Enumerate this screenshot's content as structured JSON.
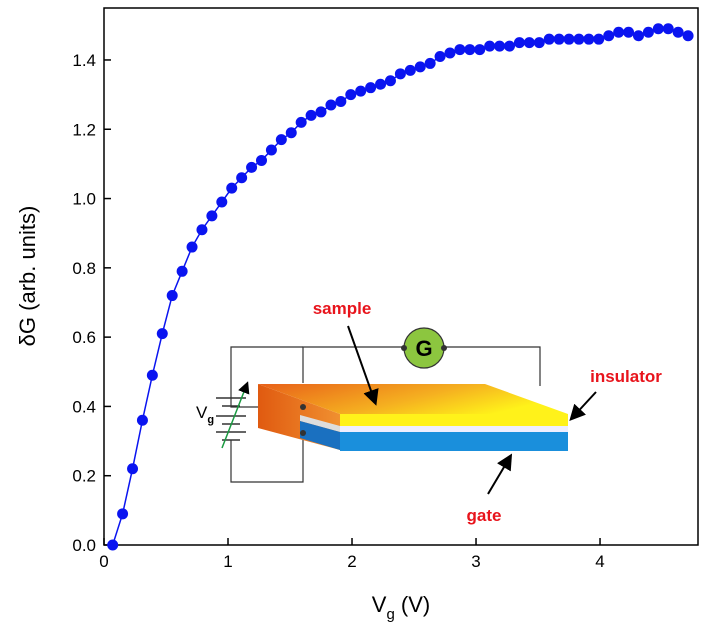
{
  "chart_data": {
    "type": "line",
    "x_label": [
      "V",
      "g",
      " (V)"
    ],
    "y_label": "δG (arb. units)",
    "xlim": [
      0,
      4.79
    ],
    "ylim": [
      0,
      1.55
    ],
    "xticks": [
      0,
      1,
      2,
      3,
      4
    ],
    "yticks": [
      {
        "value": 0,
        "label": "0.0"
      },
      0.2,
      0.4,
      0.6,
      0.8,
      {
        "value": 1,
        "label": "1.0"
      },
      1.2,
      1.4
    ],
    "series": [
      {
        "color": "#0a14f0",
        "x": [
          0.07,
          0.15,
          0.23,
          0.31,
          0.39,
          0.47,
          0.55,
          0.63,
          0.71,
          0.79,
          0.87,
          0.95,
          1.03,
          1.11,
          1.19,
          1.27,
          1.35,
          1.43,
          1.51,
          1.59,
          1.67,
          1.75,
          1.83,
          1.91,
          1.99,
          2.07,
          2.15,
          2.23,
          2.31,
          2.39,
          2.47,
          2.55,
          2.63,
          2.71,
          2.79,
          2.87,
          2.95,
          3.03,
          3.11,
          3.19,
          3.27,
          3.35,
          3.43,
          3.51,
          3.59,
          3.67,
          3.75,
          3.83,
          3.91,
          3.99,
          4.07,
          4.15,
          4.23,
          4.31,
          4.39,
          4.47,
          4.55,
          4.63,
          4.71
        ],
        "values": [
          0.0,
          0.09,
          0.22,
          0.36,
          0.49,
          0.61,
          0.72,
          0.79,
          0.86,
          0.91,
          0.95,
          0.99,
          1.03,
          1.06,
          1.09,
          1.11,
          1.14,
          1.17,
          1.19,
          1.22,
          1.24,
          1.25,
          1.27,
          1.28,
          1.3,
          1.31,
          1.32,
          1.33,
          1.34,
          1.36,
          1.37,
          1.38,
          1.39,
          1.41,
          1.42,
          1.43,
          1.43,
          1.43,
          1.44,
          1.44,
          1.44,
          1.45,
          1.45,
          1.45,
          1.46,
          1.46,
          1.46,
          1.46,
          1.46,
          1.46,
          1.47,
          1.48,
          1.48,
          1.47,
          1.48,
          1.49,
          1.49,
          1.48,
          1.47
        ]
      }
    ],
    "inset": {
      "meter": "G",
      "source": [
        "V",
        "g"
      ],
      "labels": {
        "sample": "sample",
        "insulator": "insulator",
        "gate": "gate"
      }
    }
  }
}
